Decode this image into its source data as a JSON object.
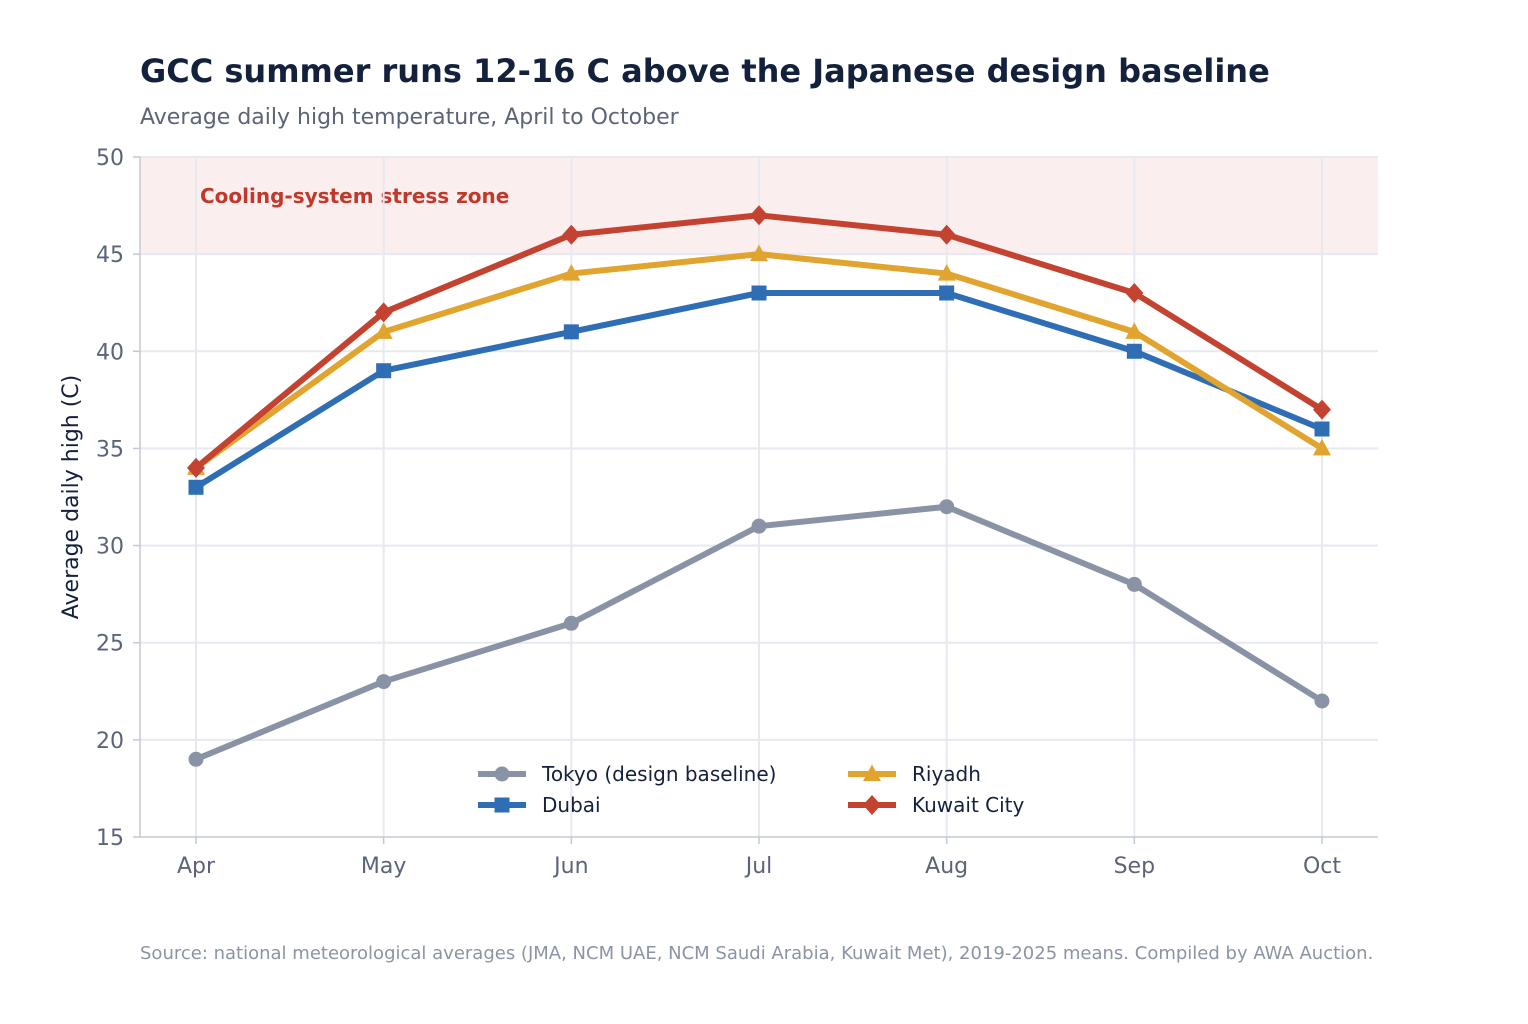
{
  "chart_data": {
    "type": "line",
    "title": "GCC summer runs 12-16 C above the Japanese design baseline",
    "subtitle": "Average daily high temperature, April to October",
    "xlabel": "",
    "ylabel": "Average daily high (C)",
    "categories": [
      "Apr",
      "May",
      "Jun",
      "Jul",
      "Aug",
      "Sep",
      "Oct"
    ],
    "ylim": [
      15,
      50
    ],
    "yticks": [
      15,
      20,
      25,
      30,
      35,
      40,
      45,
      50
    ],
    "grid": true,
    "legend_position": "bottom-center",
    "shaded_band": {
      "label": "Cooling-system stress zone",
      "from": 45,
      "to": 50,
      "color": "#fbeeee"
    },
    "series": [
      {
        "name": "Tokyo (design baseline)",
        "color": "#8a93a6",
        "marker": "circle",
        "values": [
          19,
          23,
          26,
          31,
          32,
          28,
          22
        ]
      },
      {
        "name": "Dubai",
        "color": "#2f6db5",
        "marker": "square",
        "values": [
          33,
          39,
          41,
          43,
          43,
          40,
          36
        ]
      },
      {
        "name": "Riyadh",
        "color": "#e0a42f",
        "marker": "triangle",
        "values": [
          34,
          41,
          44,
          45,
          44,
          41,
          35
        ]
      },
      {
        "name": "Kuwait City",
        "color": "#c44230",
        "marker": "diamond",
        "values": [
          34,
          42,
          46,
          47,
          46,
          43,
          37
        ]
      }
    ],
    "source": "Source: national meteorological averages (JMA, NCM UAE, NCM Saudi Arabia, Kuwait Met), 2019-2025 means. Compiled by AWA Auction."
  }
}
